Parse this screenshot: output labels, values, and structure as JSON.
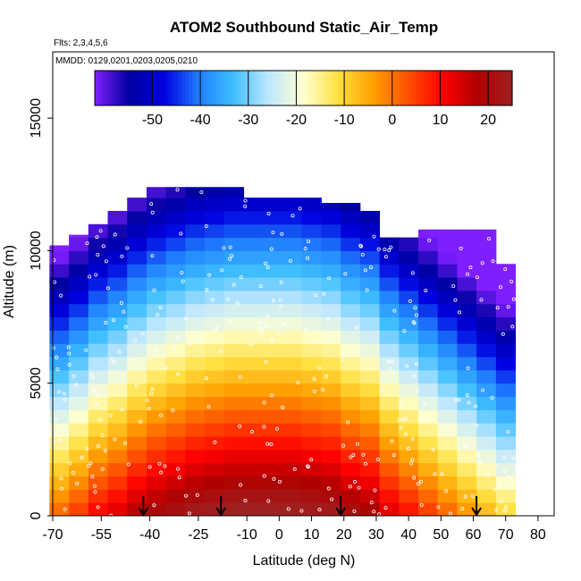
{
  "chart_data": {
    "type": "heatmap",
    "title": "ATOM2 Southbound Static_Air_Temp",
    "flights_note": "Flts: 2,3,4,5,6",
    "dates_note": "MMDD: 0129,0201,0203,0205,0210",
    "xlabel": "Latitude (deg N)",
    "ylabel": "Altitude (m)",
    "xlim": [
      -70,
      85
    ],
    "ylim": [
      0,
      17500
    ],
    "x_ticks": [
      -70,
      -55,
      -40,
      -25,
      -10,
      0,
      10,
      20,
      30,
      40,
      50,
      60,
      70,
      80
    ],
    "y_ticks": [
      0,
      5000,
      10000,
      15000
    ],
    "colorbar": {
      "range": [
        -62,
        25
      ],
      "ticks": [
        -50,
        -40,
        -30,
        -20,
        -10,
        0,
        10,
        20
      ],
      "colors": [
        "#7f1fff",
        "#0000a0",
        "#0000e0",
        "#1f7fff",
        "#3fbfff",
        "#bfe7ff",
        "#ffffd0",
        "#ffe040",
        "#ffa000",
        "#ff5000",
        "#ff0000",
        "#b00000",
        "#a02020"
      ]
    },
    "profile": {
      "lat_bins": [
        -68,
        -62,
        -56,
        -50,
        -44,
        -38,
        -32,
        -26,
        -20,
        -14,
        -8,
        -2,
        4,
        10,
        16,
        22,
        28,
        34,
        40,
        46,
        52,
        58,
        64,
        70
      ],
      "top_alt": [
        10200,
        10600,
        11000,
        11500,
        12000,
        12400,
        12400,
        12400,
        12400,
        12400,
        12000,
        12000,
        12000,
        12000,
        11800,
        11800,
        11500,
        10500,
        10500,
        10800,
        10800,
        10800,
        10800,
        9500
      ],
      "bottom_alt": [
        0,
        0,
        0,
        0,
        0,
        0,
        0,
        0,
        0,
        0,
        0,
        0,
        0,
        0,
        0,
        0,
        0,
        0,
        0,
        0,
        0,
        0,
        0,
        0
      ],
      "surface_temp": [
        2,
        6,
        11,
        14,
        18,
        21,
        23,
        25,
        26,
        27,
        27,
        27,
        27,
        26,
        25,
        22,
        20,
        14,
        10,
        6,
        2,
        -2,
        -6,
        -10
      ],
      "lapse_rate_per_km": 6.5
    },
    "arrows_lat": [
      -42,
      -18,
      19,
      61
    ]
  }
}
